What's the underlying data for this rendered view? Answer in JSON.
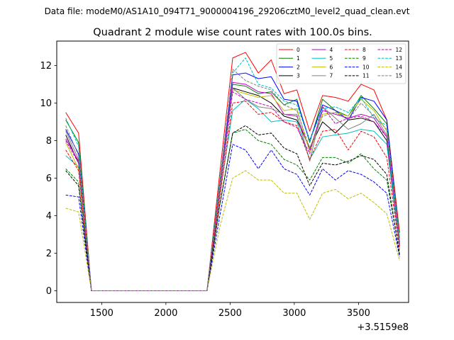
{
  "chart_data": {
    "type": "line",
    "suptitle": "Data file: modeM0/AS1A10_094T71_9000004196_29206cztM0_level2_quad_clean.evt",
    "title": "Quadrant 2 module wise count rates with 100.0s bins.",
    "xlabel": "",
    "ylabel": "",
    "x_offset_label": "+3.5159e8",
    "xlim": [
      1150,
      3890
    ],
    "ylim": [
      -0.62,
      13.3
    ],
    "xticks": [
      1500,
      2000,
      2500,
      3000,
      3500
    ],
    "xtick_labels": [
      "1500",
      "2000",
      "2500",
      "3000",
      "3500"
    ],
    "yticks": [
      0,
      2,
      4,
      6,
      8,
      10,
      12
    ],
    "ytick_labels": [
      "0",
      "2",
      "4",
      "6",
      "8",
      "10",
      "12"
    ],
    "x": [
      1220,
      1320,
      1420,
      1520,
      1620,
      1720,
      1820,
      1920,
      2020,
      2120,
      2220,
      2320,
      2420,
      2520,
      2620,
      2720,
      2820,
      2920,
      3020,
      3120,
      3220,
      3320,
      3420,
      3520,
      3620,
      3720,
      3820
    ],
    "legend_location": "upper right",
    "legend_columns": 4,
    "series": [
      {
        "name": "0",
        "color": "#ff0000",
        "dash": "solid",
        "values": [
          9.5,
          8.4,
          0,
          0,
          0,
          0,
          0,
          0,
          0,
          0,
          0,
          0,
          6.3,
          12.4,
          12.7,
          11.6,
          12.3,
          10.5,
          10.7,
          8.5,
          10.4,
          10.3,
          10.1,
          11.0,
          10.7,
          9.1,
          3.1
        ]
      },
      {
        "name": "1",
        "color": "#008000",
        "dash": "solid",
        "values": [
          9.1,
          7.9,
          0,
          0,
          0,
          0,
          0,
          0,
          0,
          0,
          0,
          0,
          5.8,
          11.0,
          10.9,
          10.5,
          10.6,
          9.9,
          10.2,
          7.9,
          10.2,
          9.6,
          9.3,
          10.4,
          9.7,
          8.9,
          2.8
        ]
      },
      {
        "name": "2",
        "color": "#0000ff",
        "dash": "solid",
        "values": [
          8.6,
          7.3,
          0,
          0,
          0,
          0,
          0,
          0,
          0,
          0,
          0,
          0,
          5.6,
          11.5,
          11.6,
          11.3,
          11.4,
          10.2,
          10.1,
          8.0,
          9.9,
          9.6,
          9.1,
          10.3,
          10.1,
          9.1,
          2.6
        ]
      },
      {
        "name": "3",
        "color": "#000000",
        "dash": "solid",
        "values": [
          8.3,
          6.8,
          0,
          0,
          0,
          0,
          0,
          0,
          0,
          0,
          0,
          0,
          5.5,
          10.8,
          10.6,
          10.4,
          10.0,
          9.3,
          9.1,
          7.6,
          9.0,
          8.4,
          9.1,
          9.2,
          9.0,
          8.0,
          2.4
        ]
      },
      {
        "name": "4",
        "color": "#bf00bf",
        "dash": "solid",
        "values": [
          8.1,
          6.9,
          0,
          0,
          0,
          0,
          0,
          0,
          0,
          0,
          0,
          0,
          5.4,
          11.1,
          11.0,
          10.6,
          10.5,
          9.4,
          9.3,
          7.5,
          9.6,
          9.4,
          9.2,
          9.4,
          9.2,
          8.2,
          2.5
        ]
      },
      {
        "name": "5",
        "color": "#00bfbf",
        "dash": "solid",
        "values": [
          7.2,
          6.6,
          0,
          0,
          0,
          0,
          0,
          0,
          0,
          0,
          0,
          0,
          5.1,
          9.6,
          10.2,
          9.7,
          9.0,
          9.1,
          9.0,
          7.0,
          8.2,
          8.3,
          8.4,
          8.6,
          8.5,
          7.8,
          2.3
        ]
      },
      {
        "name": "6",
        "color": "#bfbf00",
        "dash": "solid",
        "values": [
          7.9,
          6.5,
          0,
          0,
          0,
          0,
          0,
          0,
          0,
          0,
          0,
          0,
          5.3,
          10.7,
          10.5,
          10.3,
          10.4,
          9.6,
          9.7,
          7.4,
          9.4,
          9.5,
          9.3,
          10.2,
          9.6,
          8.5,
          2.6
        ]
      },
      {
        "name": "7",
        "color": "#808080",
        "dash": "solid",
        "values": [
          8.5,
          7.0,
          0,
          0,
          0,
          0,
          0,
          0,
          0,
          0,
          0,
          0,
          5.5,
          10.8,
          10.2,
          9.8,
          9.7,
          9.4,
          9.4,
          6.9,
          9.8,
          9.2,
          8.6,
          8.9,
          9.4,
          8.3,
          2.5
        ]
      },
      {
        "name": "8",
        "color": "#ff0000",
        "dash": "dashed",
        "values": [
          7.5,
          6.4,
          0,
          0,
          0,
          0,
          0,
          0,
          0,
          0,
          0,
          0,
          5.0,
          10.0,
          10.1,
          9.4,
          9.5,
          9.0,
          8.8,
          7.0,
          8.5,
          8.6,
          7.5,
          8.5,
          8.2,
          7.1,
          2.2
        ]
      },
      {
        "name": "9",
        "color": "#008000",
        "dash": "dashed",
        "values": [
          6.5,
          5.8,
          0,
          0,
          0,
          0,
          0,
          0,
          0,
          0,
          0,
          0,
          4.6,
          8.4,
          8.6,
          8.0,
          7.8,
          7.0,
          6.7,
          5.9,
          7.1,
          7.1,
          6.8,
          7.3,
          6.5,
          5.9,
          2.0
        ]
      },
      {
        "name": "10",
        "color": "#0000ff",
        "dash": "dashed",
        "values": [
          5.1,
          5.0,
          0,
          0,
          0,
          0,
          0,
          0,
          0,
          0,
          0,
          0,
          4.0,
          7.8,
          7.5,
          6.5,
          7.5,
          6.5,
          6.2,
          5.1,
          6.5,
          5.9,
          6.4,
          6.2,
          5.8,
          5.2,
          1.8
        ]
      },
      {
        "name": "11",
        "color": "#000000",
        "dash": "dashed",
        "values": [
          6.4,
          5.6,
          0,
          0,
          0,
          0,
          0,
          0,
          0,
          0,
          0,
          0,
          4.6,
          8.4,
          8.8,
          8.3,
          8.4,
          7.6,
          7.3,
          5.6,
          6.8,
          6.7,
          6.9,
          7.2,
          7.0,
          6.2,
          1.9
        ]
      },
      {
        "name": "12",
        "color": "#bf00bf",
        "dash": "dashed",
        "values": [
          8.0,
          6.8,
          0,
          0,
          0,
          0,
          0,
          0,
          0,
          0,
          0,
          0,
          5.3,
          10.6,
          10.2,
          10.0,
          9.8,
          9.0,
          8.7,
          7.3,
          9.8,
          8.9,
          9.2,
          9.3,
          9.0,
          8.2,
          2.4
        ]
      },
      {
        "name": "13",
        "color": "#00bfbf",
        "dash": "dashed",
        "values": [
          9.2,
          7.7,
          0,
          0,
          0,
          0,
          0,
          0,
          0,
          0,
          0,
          0,
          5.9,
          11.6,
          12.4,
          11.0,
          10.8,
          10.1,
          9.9,
          8.0,
          9.7,
          9.8,
          9.5,
          10.3,
          9.2,
          8.8,
          2.7
        ]
      },
      {
        "name": "14",
        "color": "#bfbf00",
        "dash": "dashed",
        "values": [
          4.4,
          4.2,
          0,
          0,
          0,
          0,
          0,
          0,
          0,
          0,
          0,
          0,
          3.4,
          6.0,
          6.4,
          5.9,
          5.9,
          5.2,
          5.2,
          3.8,
          5.2,
          5.4,
          4.9,
          5.2,
          4.7,
          4.1,
          1.6
        ]
      },
      {
        "name": "15",
        "color": "#808080",
        "dash": "dashed",
        "values": [
          8.8,
          7.2,
          0,
          0,
          0,
          0,
          0,
          0,
          0,
          0,
          0,
          0,
          5.7,
          11.8,
          11.2,
          10.9,
          10.7,
          9.9,
          9.6,
          7.6,
          9.3,
          9.5,
          9.1,
          10.0,
          9.3,
          8.6,
          2.6
        ]
      }
    ]
  }
}
